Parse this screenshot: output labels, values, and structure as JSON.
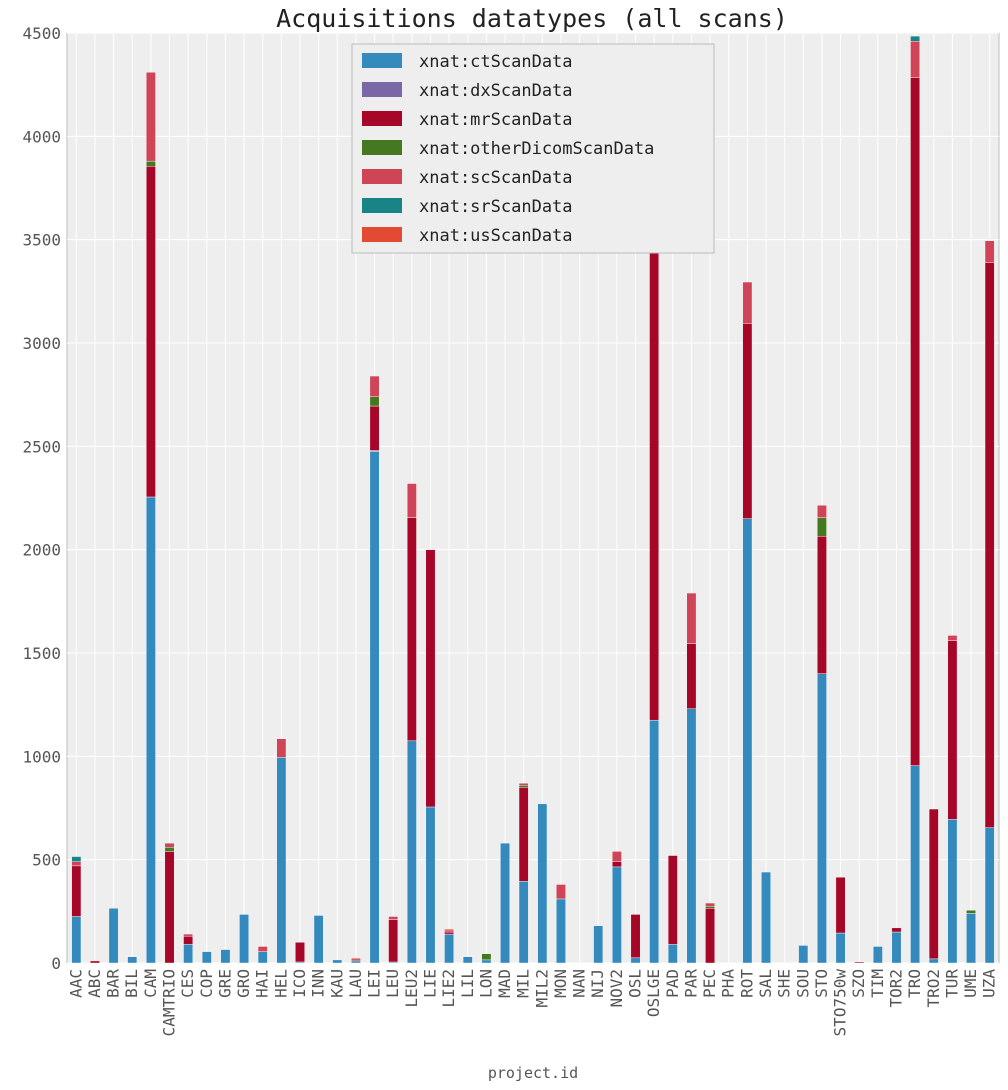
{
  "chart_data": {
    "type": "bar",
    "stacked": true,
    "title": "Acquisitions datatypes (all scans)",
    "xlabel": "project.id",
    "ylabel": "",
    "ylim": [
      0,
      4500
    ],
    "yticks": [
      0,
      500,
      1000,
      1500,
      2000,
      2500,
      3000,
      3500,
      4000,
      4500
    ],
    "grid": true,
    "legend_position": "top-center",
    "categories": [
      "AAC",
      "ABC",
      "BAR",
      "BIL",
      "CAM",
      "CAMTRIO",
      "CES",
      "COP",
      "GRE",
      "GRO",
      "HAI",
      "HEL",
      "ICO",
      "INN",
      "KAU",
      "LAU",
      "LEI",
      "LEU",
      "LEU2",
      "LIE",
      "LIE2",
      "LIL",
      "LON",
      "MAD",
      "MIL",
      "MIL2",
      "MON",
      "NAN",
      "NIJ",
      "NOV2",
      "OSL",
      "OSLGE",
      "PAD",
      "PAR",
      "PEC",
      "PHA",
      "ROT",
      "SAL",
      "SHE",
      "SOU",
      "STO",
      "STO750w",
      "SZO",
      "TIM",
      "TOR2",
      "TRO",
      "TRO2",
      "TUR",
      "UME",
      "UZA"
    ],
    "series": [
      {
        "name": "xnat:ctScanData",
        "color": "#348abd",
        "values": [
          225,
          0,
          265,
          30,
          2255,
          0,
          90,
          55,
          65,
          235,
          55,
          995,
          5,
          230,
          15,
          10,
          2475,
          5,
          1075,
          755,
          140,
          30,
          15,
          580,
          395,
          770,
          310,
          0,
          180,
          465,
          25,
          1175,
          90,
          1230,
          0,
          0,
          2150,
          440,
          0,
          85,
          1400,
          145,
          0,
          80,
          150,
          955,
          20,
          695,
          240,
          655
        ]
      },
      {
        "name": "xnat:dxScanData",
        "color": "#7a68a6",
        "values": [
          0,
          0,
          0,
          0,
          0,
          0,
          0,
          0,
          0,
          0,
          0,
          0,
          0,
          0,
          0,
          0,
          5,
          0,
          0,
          0,
          0,
          0,
          0,
          0,
          0,
          0,
          0,
          0,
          0,
          0,
          0,
          0,
          0,
          0,
          0,
          0,
          0,
          0,
          0,
          0,
          0,
          0,
          0,
          0,
          0,
          0,
          0,
          0,
          0,
          0
        ]
      },
      {
        "name": "xnat:mrScanData",
        "color": "#a60628",
        "values": [
          245,
          10,
          0,
          0,
          1600,
          540,
          40,
          0,
          0,
          0,
          0,
          0,
          95,
          0,
          0,
          0,
          215,
          205,
          1080,
          1245,
          10,
          0,
          0,
          0,
          455,
          0,
          0,
          0,
          0,
          25,
          210,
          2275,
          430,
          315,
          265,
          0,
          945,
          0,
          0,
          0,
          665,
          270,
          5,
          0,
          20,
          3330,
          725,
          865,
          0,
          2735
        ]
      },
      {
        "name": "xnat:otherDicomScanData",
        "color": "#467821",
        "values": [
          0,
          0,
          0,
          0,
          25,
          20,
          0,
          0,
          0,
          0,
          0,
          0,
          0,
          0,
          0,
          0,
          45,
          0,
          0,
          0,
          0,
          0,
          30,
          0,
          10,
          0,
          0,
          0,
          0,
          0,
          0,
          0,
          0,
          0,
          10,
          0,
          0,
          0,
          0,
          0,
          90,
          0,
          0,
          0,
          0,
          0,
          0,
          0,
          15,
          0
        ]
      },
      {
        "name": "xnat:scScanData",
        "color": "#cf4457",
        "values": [
          20,
          0,
          0,
          0,
          430,
          20,
          10,
          0,
          0,
          0,
          25,
          90,
          0,
          0,
          0,
          10,
          100,
          15,
          165,
          0,
          10,
          0,
          0,
          0,
          10,
          0,
          70,
          0,
          0,
          50,
          0,
          0,
          0,
          245,
          15,
          0,
          200,
          0,
          0,
          0,
          60,
          0,
          0,
          0,
          0,
          175,
          0,
          25,
          0,
          105
        ]
      },
      {
        "name": "xnat:srScanData",
        "color": "#188487",
        "values": [
          25,
          0,
          0,
          0,
          0,
          0,
          0,
          0,
          0,
          0,
          0,
          0,
          0,
          0,
          0,
          0,
          0,
          0,
          0,
          0,
          0,
          0,
          0,
          0,
          0,
          0,
          0,
          0,
          0,
          0,
          0,
          0,
          0,
          0,
          0,
          0,
          0,
          0,
          0,
          0,
          0,
          0,
          0,
          0,
          0,
          25,
          0,
          0,
          0,
          0
        ]
      },
      {
        "name": "xnat:usScanData",
        "color": "#e24a33",
        "values": [
          0,
          0,
          0,
          0,
          0,
          0,
          0,
          0,
          0,
          0,
          0,
          0,
          0,
          0,
          0,
          5,
          0,
          0,
          0,
          0,
          5,
          0,
          0,
          0,
          0,
          0,
          0,
          0,
          0,
          0,
          0,
          0,
          0,
          0,
          0,
          0,
          0,
          0,
          0,
          0,
          0,
          0,
          0,
          0,
          0,
          0,
          0,
          0,
          0,
          0
        ]
      }
    ]
  }
}
